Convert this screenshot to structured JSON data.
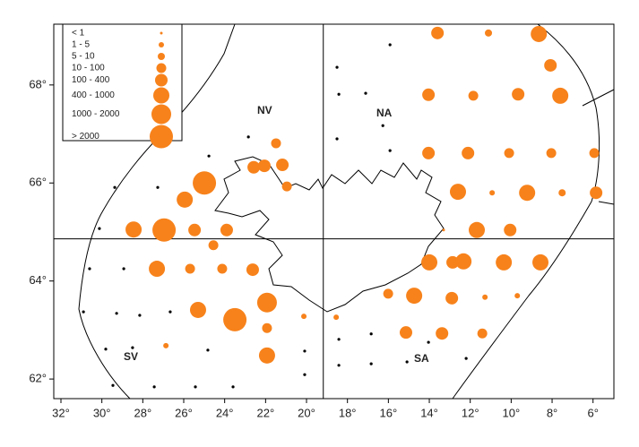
{
  "chart_data": {
    "type": "bubble-map",
    "xlim": [
      32.35,
      4.98
    ],
    "ylim": [
      61.6,
      69.24
    ],
    "xticks": [
      {
        "value": 32,
        "label": "32°"
      },
      {
        "value": 30,
        "label": "30°"
      },
      {
        "value": 28,
        "label": "28°"
      },
      {
        "value": 26,
        "label": "26°"
      },
      {
        "value": 24,
        "label": "24°"
      },
      {
        "value": 22,
        "label": "22°"
      },
      {
        "value": 20,
        "label": "20°"
      },
      {
        "value": 18,
        "label": "18°"
      },
      {
        "value": 16,
        "label": "16°"
      },
      {
        "value": 14,
        "label": "14°"
      },
      {
        "value": 12,
        "label": "12°"
      },
      {
        "value": 10,
        "label": "10°"
      },
      {
        "value": 8,
        "label": "8°"
      },
      {
        "value": 6,
        "label": "6°"
      }
    ],
    "yticks": [
      {
        "value": 62,
        "label": "62°"
      },
      {
        "value": 64,
        "label": "64°"
      },
      {
        "value": 66,
        "label": "66°"
      },
      {
        "value": 68,
        "label": "68°"
      }
    ],
    "legend": {
      "labels": [
        "< 1",
        "1 - 5",
        "5 - 10",
        "10 - 100",
        "100 - 400",
        "400 - 1000",
        "1000 - 2000",
        "> 2000"
      ]
    },
    "color": "#f7821b",
    "empty_color": "#000000",
    "points": {
      "x": [
        13.6,
        11.11,
        8.65,
        8.08,
        14.04,
        11.85,
        9.66,
        7.6,
        21.49,
        22.58,
        22.06,
        21.18,
        20.96,
        24.99,
        25.95,
        28.45,
        26.96,
        25.47,
        23.9,
        24.55,
        27.31,
        25.69,
        24.12,
        22.63,
        21.93,
        23.5,
        25.3,
        21.93,
        21.93,
        26.87,
        14.04,
        12.11,
        10.1,
        8.04,
        5.94,
        12.6,
        10.93,
        9.22,
        7.51,
        5.85,
        11.68,
        10.05,
        13.3,
        14.0,
        12.86,
        12.33,
        10.36,
        8.57,
        16.01,
        14.74,
        12.9,
        11.28,
        9.7,
        15.14,
        13.38,
        11.41,
        18.55,
        20.13
      ],
      "y": [
        69.06,
        69.06,
        69.04,
        68.4,
        67.8,
        67.78,
        67.81,
        67.78,
        66.81,
        66.32,
        66.35,
        66.37,
        65.93,
        66.0,
        65.66,
        65.05,
        65.04,
        65.04,
        65.04,
        64.73,
        64.25,
        64.25,
        64.25,
        64.23,
        63.56,
        63.21,
        63.41,
        63.04,
        62.48,
        62.68,
        66.61,
        66.61,
        66.61,
        66.61,
        66.61,
        65.82,
        65.8,
        65.8,
        65.8,
        65.8,
        65.04,
        65.04,
        65.04,
        64.38,
        64.38,
        64.4,
        64.38,
        64.38,
        63.74,
        63.7,
        63.65,
        63.67,
        63.7,
        62.95,
        62.93,
        62.93,
        63.26,
        63.28
      ],
      "class": [
        4,
        2,
        5,
        4,
        4,
        3,
        4,
        5,
        3,
        4,
        4,
        4,
        3,
        7,
        5,
        5,
        7,
        4,
        4,
        3,
        5,
        3,
        3,
        4,
        6,
        7,
        5,
        3,
        5,
        1,
        4,
        4,
        3,
        3,
        3,
        5,
        1,
        5,
        2,
        4,
        5,
        4,
        0,
        5,
        4,
        5,
        5,
        5,
        3,
        5,
        4,
        1,
        1,
        4,
        4,
        3,
        1,
        1
      ]
    },
    "empty_stations": {
      "x": [
        18.51,
        15.92,
        18.42,
        17.11,
        16.27,
        18.51,
        15.92,
        22.84,
        24.77,
        27.27,
        29.37,
        30.12,
        30.6,
        28.93,
        29.28,
        28.15,
        26.66,
        30.9,
        29.81,
        28.5,
        29.46,
        27.44,
        25.43,
        23.59,
        20.09,
        20.09,
        18.42,
        18.42,
        16.84,
        16.84,
        15.09,
        14.04,
        12.2,
        24.82
      ],
      "y": [
        68.36,
        68.82,
        67.81,
        67.83,
        67.17,
        66.9,
        66.66,
        66.94,
        66.55,
        65.91,
        65.91,
        65.07,
        64.25,
        64.25,
        63.34,
        63.3,
        63.37,
        63.37,
        62.61,
        62.64,
        61.87,
        61.84,
        61.84,
        61.84,
        62.57,
        62.09,
        62.81,
        62.28,
        62.92,
        62.31,
        62.35,
        62.75,
        62.42,
        62.59
      ]
    },
    "dividers": {
      "lon": 19.18,
      "lat": 64.86
    },
    "regions": [
      "NV",
      "NA",
      "SV",
      "SA"
    ]
  }
}
